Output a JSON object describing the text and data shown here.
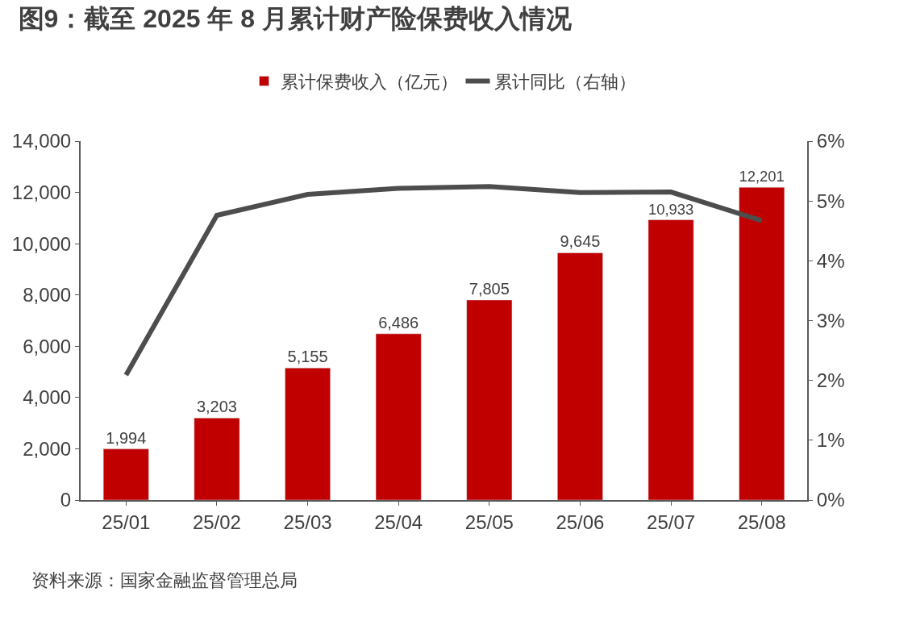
{
  "chart_data": {
    "type": "bar",
    "title": "图9：截至 2025 年 8 月累计财产险保费收入情况",
    "categories": [
      "25/01",
      "25/02",
      "25/03",
      "25/04",
      "25/05",
      "25/06",
      "25/07",
      "25/08"
    ],
    "series": [
      {
        "name": "累计保费收入（亿元）",
        "color": "#c00000",
        "values": [
          1994,
          3203,
          5155,
          6486,
          7805,
          9645,
          10933,
          12201
        ],
        "value_labels": [
          "1,994",
          "3,203",
          "5,155",
          "6,486",
          "7,805",
          "9,645",
          "10,933",
          "12,201"
        ]
      },
      {
        "name": "累计同比（右轴）",
        "type": "line",
        "axis": "y2",
        "color": "#4d4d4d",
        "values": [
          2.09,
          4.76,
          5.11,
          5.21,
          5.24,
          5.14,
          5.15,
          4.67
        ],
        "marker": "none",
        "line_style": "solid"
      }
    ],
    "ylim": [
      0,
      14000
    ],
    "yticks": [
      0,
      {
        "value": 2000,
        "label": "2,000"
      },
      {
        "value": 4000,
        "label": "4,000"
      },
      {
        "value": 6000,
        "label": "6,000"
      },
      {
        "value": 8000,
        "label": "8,000"
      },
      {
        "value": 10000,
        "label": "10,000"
      },
      {
        "value": 12000,
        "label": "12,000"
      },
      {
        "value": 14000,
        "label": "14,000"
      }
    ],
    "y2lim": [
      0,
      6
    ],
    "y2ticks": [
      {
        "value": 0,
        "label": "0%"
      },
      {
        "value": 1,
        "label": "1%"
      },
      {
        "value": 2,
        "label": "2%"
      },
      {
        "value": 3,
        "label": "3%"
      },
      {
        "value": 4,
        "label": "4%"
      },
      {
        "value": 5,
        "label": "5%"
      },
      {
        "value": 6,
        "label": "6%"
      }
    ],
    "legend": "top",
    "annotations": [
      "资料来源：国家金融监督管理总局"
    ]
  }
}
